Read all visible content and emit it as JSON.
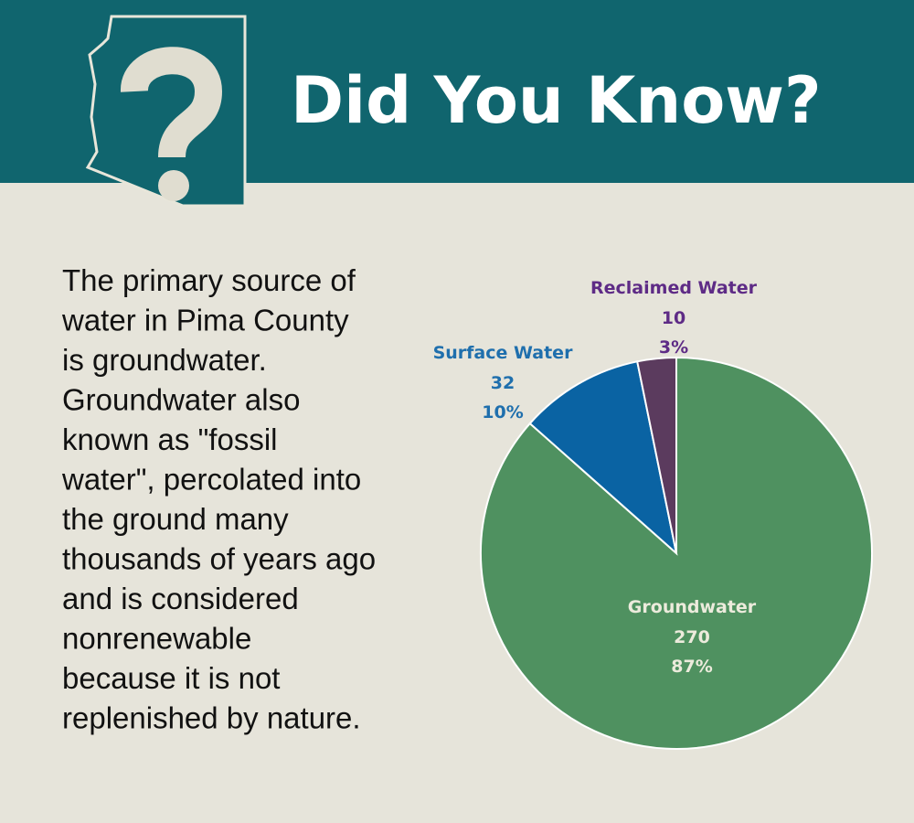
{
  "header": {
    "title": "Did You Know?"
  },
  "body": {
    "lines": [
      "The primary source of",
      "water in Pima County",
      "is groundwater.",
      "Groundwater also",
      "known as \"fossil",
      "water\", percolated into",
      "the ground many",
      "thousands of years ago",
      "and is considered",
      "nonrenewable",
      "because it is not",
      "replenished by nature."
    ]
  },
  "chart_data": {
    "type": "pie",
    "categories": [
      "Groundwater",
      "Surface Water",
      "Reclaimed Water"
    ],
    "values": [
      270,
      32,
      10
    ],
    "percents": [
      {
        "value": 87,
        "label": "87%"
      },
      {
        "value": 10,
        "label": "10%"
      },
      {
        "value": 3,
        "label": "3%"
      }
    ],
    "colors": [
      "#4f9160",
      "#0a63a3",
      "#5b3b5e"
    ],
    "label_colors": [
      "#ecebdc",
      "#1f6fad",
      "#5e2b86"
    ]
  }
}
